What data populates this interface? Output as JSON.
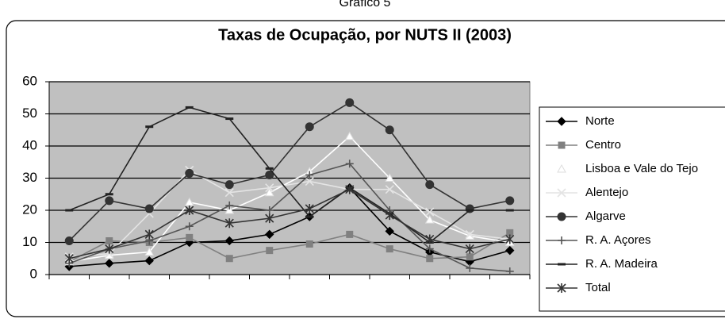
{
  "chart_data": {
    "type": "line",
    "caption": "Gráfico 5",
    "title": "Taxas de Ocupação, por NUTS II (2003)",
    "categories": [
      null,
      null,
      null,
      null,
      null,
      null,
      null,
      null,
      null,
      null,
      null,
      null
    ],
    "ylim": [
      0,
      60
    ],
    "yticks": [
      0,
      10,
      20,
      30,
      40,
      50,
      60
    ],
    "grid": true,
    "legend": "right",
    "series": [
      {
        "name": "Norte",
        "color": "#000000",
        "marker": "diamond",
        "values": [
          2.5,
          3.5,
          4.3,
          10,
          10.5,
          12.5,
          18,
          27,
          13.5,
          7,
          4,
          7.5
        ]
      },
      {
        "name": "Centro",
        "color": "#808080",
        "marker": "square",
        "values": [
          4,
          10.5,
          10,
          11.5,
          5,
          7.5,
          9.5,
          12.5,
          8,
          5,
          5.5,
          13
        ]
      },
      {
        "name": "Lisboa e Vale do Tejo",
        "color": "#ffffff",
        "marker": "triangle",
        "values": [
          4,
          6,
          7,
          22.5,
          20,
          25.5,
          32,
          43,
          30,
          17,
          12,
          10
        ]
      },
      {
        "name": "Alentejo",
        "color": "#e4e4e4",
        "marker": "x",
        "values": [
          5.5,
          6.5,
          19,
          32.5,
          25.5,
          27,
          29,
          26.5,
          26.5,
          19.5,
          12.5,
          11
        ]
      },
      {
        "name": "Algarve",
        "color": "#333333",
        "marker": "circle",
        "values": [
          10.5,
          23,
          20.5,
          31.5,
          28,
          31,
          46,
          53.5,
          45,
          28,
          20.5,
          23
        ]
      },
      {
        "name": "R. A. Açores",
        "color": "#555555",
        "marker": "plus",
        "values": [
          3.5,
          8,
          10.5,
          15,
          21.5,
          20,
          31,
          34.5,
          20,
          8,
          2,
          1
        ]
      },
      {
        "name": "R. A. Madeira",
        "color": "#222222",
        "marker": "dash",
        "values": [
          20,
          25,
          46,
          52,
          48.5,
          33,
          18,
          27,
          19,
          10,
          20,
          20
        ]
      },
      {
        "name": "Total",
        "color": "#333333",
        "marker": "asterisk",
        "values": [
          5,
          8,
          12.5,
          20,
          16,
          17.5,
          20.5,
          26.5,
          18.5,
          11,
          8,
          11
        ]
      }
    ]
  }
}
